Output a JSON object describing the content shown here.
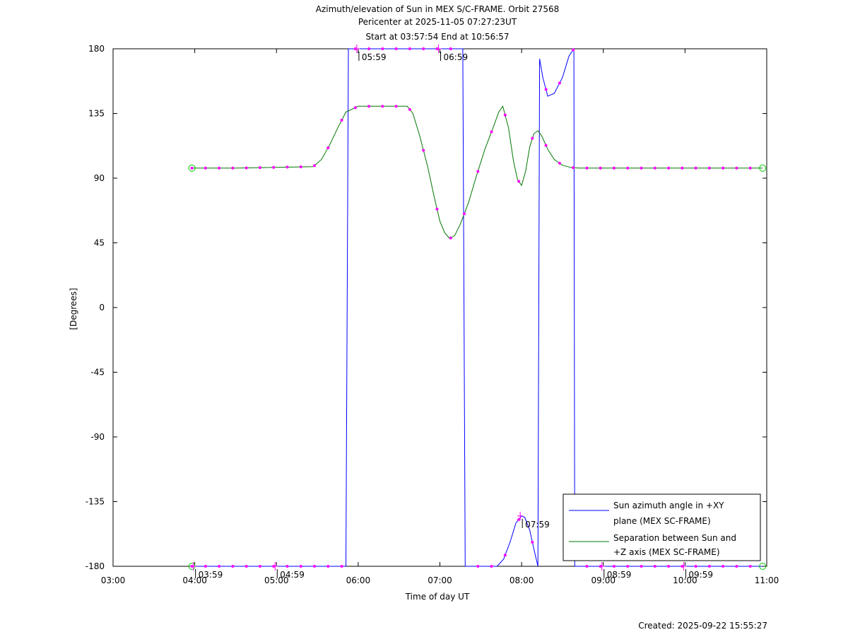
{
  "chart_data": {
    "type": "line",
    "title_lines": [
      "Azimuth/elevation of Sun in MEX S/C-FRAME.  Orbit 27568",
      "Pericenter at 2025-11-05 07:27:23UT",
      "Start at 03:57:54 End at 10:56:57"
    ],
    "xlabel": "Time of day UT",
    "ylabel": "[Degrees]",
    "xlim": [
      3,
      11
    ],
    "ylim": [
      -180,
      180
    ],
    "x_ticks": [
      "03:00",
      "04:00",
      "05:00",
      "06:00",
      "07:00",
      "08:00",
      "09:00",
      "10:00",
      "11:00"
    ],
    "y_ticks": [
      "180",
      "135",
      "90",
      "45",
      "0",
      "-45",
      "-90",
      "-135",
      "-180"
    ],
    "legend_position": "bottom-right",
    "legend": [
      {
        "line1": "Sun azimuth angle in +XY",
        "line2": "plane (MEX SC-FRAME)",
        "color": "#0000ff"
      },
      {
        "line1": "Separation between Sun and",
        "line2": "+Z axis (MEX SC-FRAME)",
        "color": "#007700"
      }
    ],
    "series": [
      {
        "name": "Sun azimuth angle in +XY plane (MEX SC-FRAME)",
        "color": "#0000ff",
        "x": [
          3.965,
          5.0,
          5.85,
          5.88,
          6.0,
          6.5,
          7.0,
          7.28,
          7.31,
          7.5,
          7.65,
          7.7,
          7.78,
          7.86,
          7.93,
          8.0,
          8.04,
          8.1,
          8.15,
          8.2,
          8.22,
          8.26,
          8.32,
          8.4,
          8.5,
          8.58,
          8.64,
          8.65,
          9.0,
          10.0,
          10.95
        ],
        "y": [
          -180,
          -180,
          -180,
          180,
          180,
          180,
          180,
          180,
          -180,
          -180,
          -180,
          -180,
          -175,
          -163,
          -150,
          -145,
          -146,
          -155,
          -168,
          -180,
          173,
          160,
          147,
          149,
          160,
          175,
          180,
          -180,
          -180,
          -180,
          -180
        ]
      },
      {
        "name": "Separation between Sun and +Z axis (MEX SC-FRAME)",
        "color": "#007700",
        "x": [
          3.965,
          4.5,
          5.45,
          5.55,
          5.65,
          5.75,
          5.85,
          6.0,
          6.3,
          6.6,
          6.67,
          6.75,
          6.85,
          6.93,
          7.0,
          7.06,
          7.12,
          7.18,
          7.25,
          7.35,
          7.45,
          7.55,
          7.65,
          7.72,
          7.77,
          7.84,
          7.9,
          7.95,
          8.0,
          8.05,
          8.1,
          8.15,
          8.2,
          8.25,
          8.32,
          8.4,
          8.5,
          8.6,
          8.7,
          9.0,
          10.0,
          10.95
        ],
        "y": [
          97,
          97,
          98,
          103,
          113,
          125,
          136,
          140,
          140,
          140,
          135,
          120,
          98,
          77,
          60,
          52,
          48,
          50,
          58,
          73,
          92,
          110,
          125,
          136,
          140,
          125,
          102,
          89,
          85,
          95,
          112,
          121,
          123,
          119,
          110,
          103,
          99,
          97.5,
          97,
          97,
          97,
          97
        ]
      }
    ],
    "time_marker_labels": [
      "03:59",
      "04:59",
      "05:59",
      "06:59",
      "07:59",
      "08:59",
      "09:59"
    ],
    "footer": "Created: 2025-09-22 15:55:27"
  }
}
